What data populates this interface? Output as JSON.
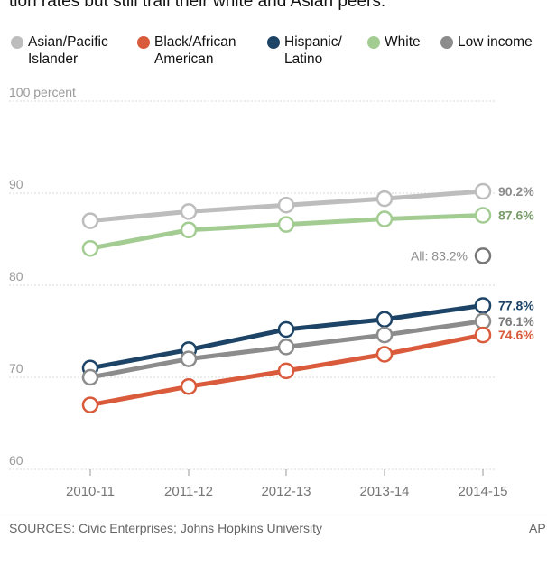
{
  "subtitle": "tion rates but still trail their white and Asian peers.",
  "legend": [
    {
      "label": "Asian/Pacific\nIslander",
      "color": "#bdbdbd"
    },
    {
      "label": "Black/African\nAmerican",
      "color": "#d95b3c"
    },
    {
      "label": "Hispanic/\nLatino",
      "color": "#1d4466"
    },
    {
      "label": "White",
      "color": "#a3cc92"
    },
    {
      "label": "Low income",
      "color": "#8c8c8c"
    }
  ],
  "source": "SOURCES: Civic Enterprises; Johns Hopkins University",
  "credit": "AP",
  "chart_data": {
    "type": "line",
    "categories": [
      "2010-11",
      "2011-12",
      "2012-13",
      "2013-14",
      "2014-15"
    ],
    "ylim": [
      60,
      100
    ],
    "yticks": [
      60,
      70,
      80,
      90,
      100
    ],
    "ytick_labels": [
      "60",
      "70",
      "80",
      "90",
      "100 percent"
    ],
    "grid": true,
    "series": [
      {
        "name": "Asian/Pacific Islander",
        "color": "#bdbdbd",
        "label_color": "#8c8c8c",
        "values": [
          87.0,
          88.0,
          88.7,
          89.4,
          90.2
        ],
        "end_label": "90.2%"
      },
      {
        "name": "White",
        "color": "#a3cc92",
        "label_color": "#7a9c6a",
        "values": [
          84.0,
          86.0,
          86.6,
          87.2,
          87.6
        ],
        "end_label": "87.6%"
      },
      {
        "name": "Hispanic/Latino",
        "color": "#1d4466",
        "label_color": "#1d4466",
        "values": [
          71.0,
          73.0,
          75.2,
          76.3,
          77.8
        ],
        "end_label": "77.8%"
      },
      {
        "name": "Low income",
        "color": "#8c8c8c",
        "label_color": "#7a7a7a",
        "values": [
          70.0,
          72.0,
          73.3,
          74.6,
          76.1
        ],
        "end_label": "76.1%"
      },
      {
        "name": "Black/African American",
        "color": "#d95b3c",
        "label_color": "#d95b3c",
        "values": [
          67.0,
          69.0,
          70.7,
          72.5,
          74.6
        ],
        "end_label": "74.6%"
      }
    ],
    "annotation": {
      "label": "All: 83.2%",
      "value": 83.2
    }
  }
}
